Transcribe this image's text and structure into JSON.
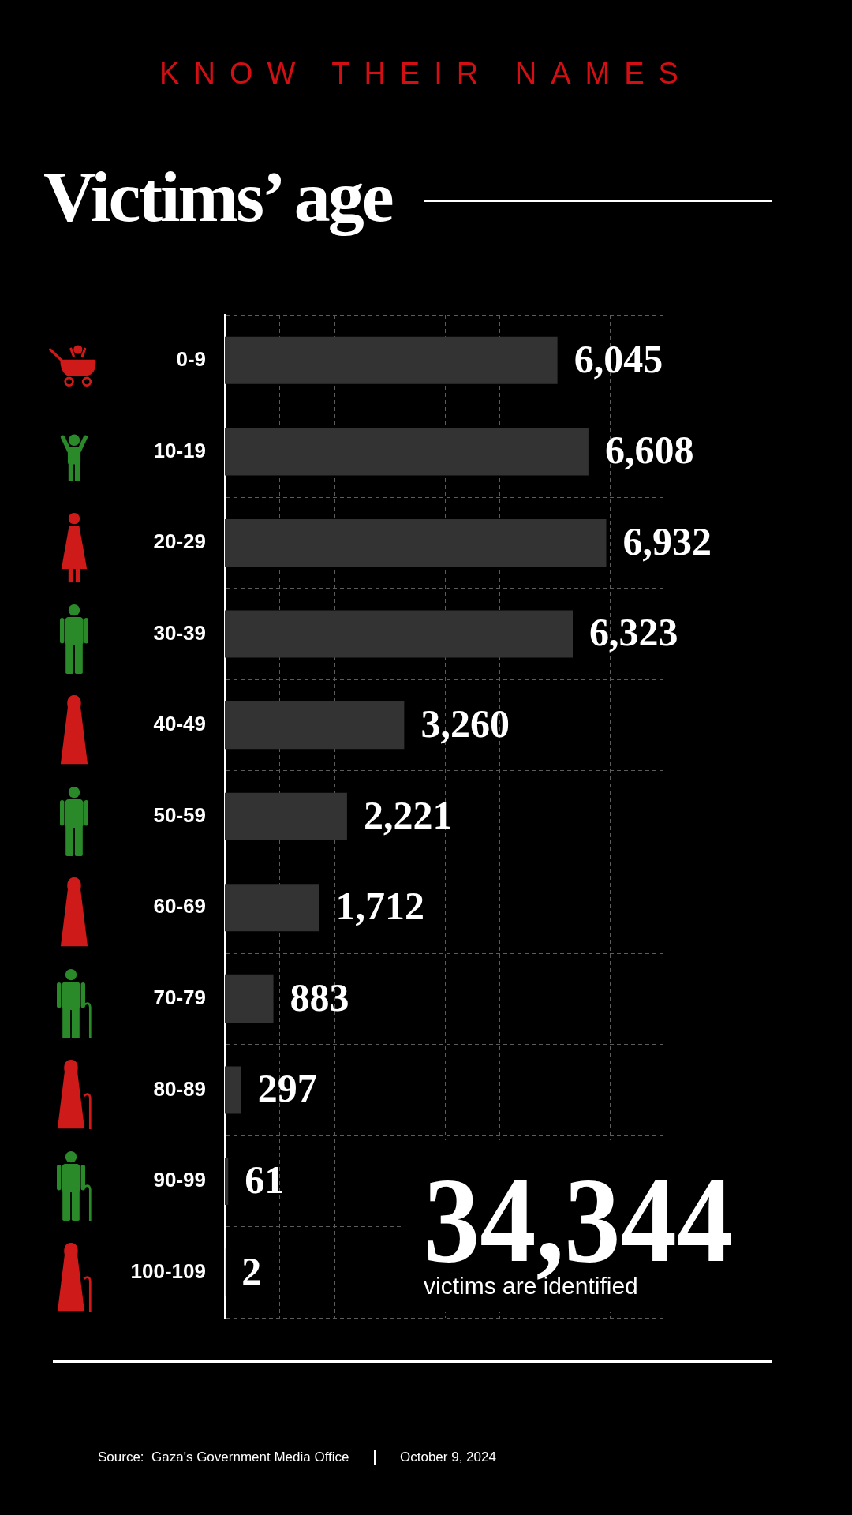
{
  "chart_data": {
    "type": "bar",
    "orientation": "horizontal",
    "title": "Victims’ age",
    "subtitle": "KNOW THEIR NAMES",
    "categories": [
      "0-9",
      "10-19",
      "20-29",
      "30-39",
      "40-49",
      "50-59",
      "60-69",
      "70-79",
      "80-89",
      "90-99",
      "100-109"
    ],
    "values": [
      6045,
      6608,
      6932,
      6323,
      3260,
      2221,
      1712,
      883,
      297,
      61,
      2
    ],
    "color": "#333333",
    "value_labels": [
      "6,045",
      "6,608",
      "6,932",
      "6,323",
      "3,260",
      "2,221",
      "1,712",
      "883",
      "297",
      "61",
      "2"
    ],
    "xlim": [
      0,
      8000
    ],
    "xticks": [
      {
        "value": 1000,
        "label": null
      },
      {
        "value": 2000,
        "label": null
      },
      {
        "value": 3000,
        "label": null
      },
      {
        "value": 4000,
        "label": null
      },
      {
        "value": 5000,
        "label": null
      },
      {
        "value": 6000,
        "label": null
      },
      {
        "value": 7000,
        "label": null
      }
    ],
    "grid": true,
    "tick_labels": "y",
    "annotations": [
      "34,344",
      "victims are identified",
      "Source:  Gaza's Government Media Office",
      "October 9, 2024"
    ]
  }
}
